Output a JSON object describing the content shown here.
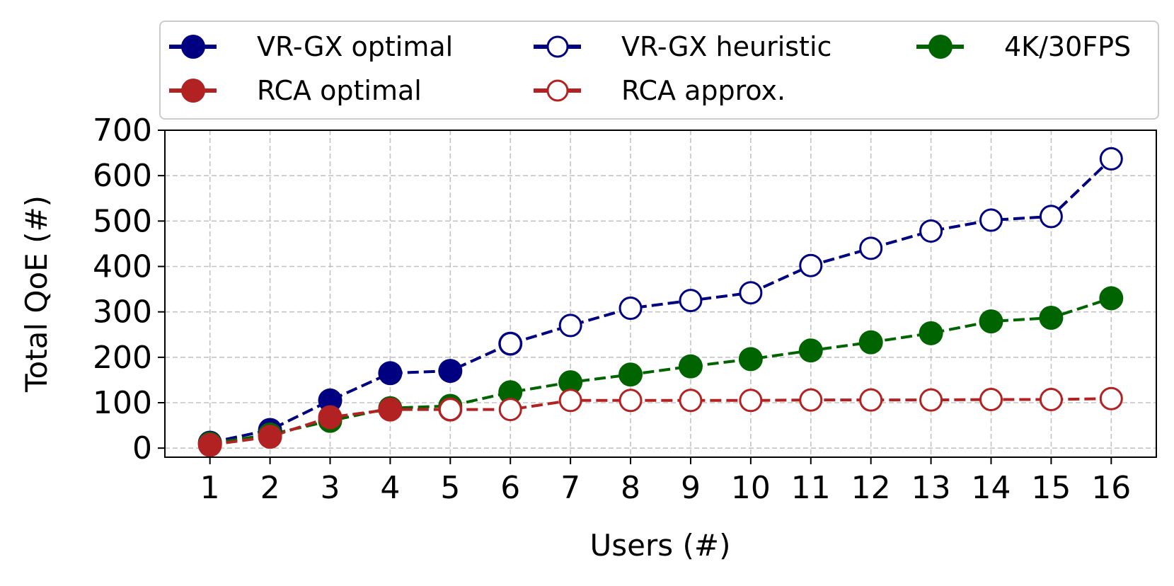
{
  "chart_data": {
    "type": "line",
    "title": "",
    "xlabel": "Users (#)",
    "ylabel": "Total QoE (#)",
    "x": [
      1,
      2,
      3,
      4,
      5,
      6,
      7,
      8,
      9,
      10,
      11,
      12,
      13,
      14,
      15,
      16
    ],
    "xlim": [
      0.25,
      16.75
    ],
    "ylim": [
      -20,
      700
    ],
    "yticks": [
      0,
      100,
      200,
      300,
      400,
      500,
      600,
      700
    ],
    "xticks": [
      1,
      2,
      3,
      4,
      5,
      6,
      7,
      8,
      9,
      10,
      11,
      12,
      13,
      14,
      15,
      16
    ],
    "grid": true,
    "legend_position": "top",
    "series": [
      {
        "name": "VR-GX optimal",
        "color": "#000080",
        "marker": "filled",
        "x": [
          1,
          2,
          3,
          4,
          5,
          6
        ],
        "values": [
          12,
          40,
          105,
          165,
          170,
          230
        ]
      },
      {
        "name": "VR-GX heuristic",
        "color": "#000080",
        "marker": "hollow",
        "x": [
          6,
          7,
          8,
          9,
          10,
          11,
          12,
          13,
          14,
          15,
          16
        ],
        "values": [
          230,
          270,
          308,
          325,
          342,
          402,
          440,
          478,
          502,
          510,
          637
        ]
      },
      {
        "name": "4K/30FPS",
        "color": "#006400",
        "marker": "filled",
        "x": [
          1,
          2,
          3,
          4,
          5,
          6,
          7,
          8,
          9,
          10,
          11,
          12,
          13,
          14,
          15,
          16
        ],
        "values": [
          10,
          30,
          60,
          88,
          93,
          123,
          145,
          162,
          180,
          196,
          215,
          233,
          253,
          279,
          287,
          330
        ]
      },
      {
        "name": "RCA optimal",
        "color": "#b22222",
        "marker": "filled",
        "x": [
          1,
          2,
          3,
          4,
          5
        ],
        "values": [
          7,
          25,
          68,
          85,
          85
        ]
      },
      {
        "name": "RCA approx.",
        "color": "#b22222",
        "marker": "hollow",
        "x": [
          5,
          6,
          7,
          8,
          9,
          10,
          11,
          12,
          13,
          14,
          15,
          16
        ],
        "values": [
          85,
          85,
          105,
          105,
          105,
          105,
          106,
          106,
          106,
          107,
          107,
          109
        ]
      }
    ]
  }
}
